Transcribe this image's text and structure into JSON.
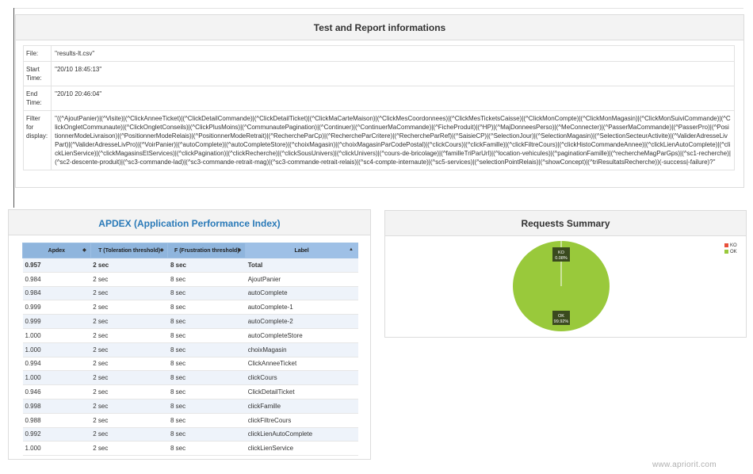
{
  "report_panel": {
    "title": "Test and Report informations",
    "rows": [
      {
        "key": "File:",
        "value": "\"results-lt.csv\""
      },
      {
        "key": "Start Time:",
        "value": "\"20/10 18:45:13\""
      },
      {
        "key": "End Time:",
        "value": "\"20/10 20:46:04\""
      },
      {
        "key": "Filter for display:",
        "value": "\"((^AjoutPanier)|(^Visite)|(^ClickAnneeTicket)|(^ClickDetailCommande)|(^ClickDetailTicket)|(^ClickMaCarteMaison)|(^ClickMesCoordonnees)|(^ClickMesTicketsCaisse)|(^ClickMonCompte)|(^ClickMonMagasin)|(^ClickMonSuiviCommande)|(^ClickOngletCommunaute)|(^ClickOngletConseils)|(^ClickPlusMoins)|(^CommunautePagination)|(^Continuer)|(^ContinuerMaCommande)|(^FicheProduit)|(^HP)|(^MajDonneesPerso)|(^MeConnecter)|(^PasserMaCommande)|(^PasserPro)|(^PositionnerModeLivraison)|(^PositionnerModeRelais)|(^PositionnerModeRetrait)|(^RechercheParCp)|(^RechercheParCritere)|(^RechercheParRef)|(^SaisieCP)|(^SelectionJour)|(^SelectionMagasin)|(^SelectionSecteurActivite)|(^ValiderAdresseLivPart)|(^ValiderAdresseLivPro)|(^VoirPanier)|(^autoComplete)|(^autoCompleteStore)|(^choixMagasin)|(^choixMagasinParCodePostal)|(^clickCours)|(^clickFamille)|(^clickFiltreCours)|(^clickHistoCommandeAnnee)|(^clickLienAutoComplete)|(^clickLienService)|(^clickMagasinsEtServices)|(^clickPagination)|(^clickRecherche)|(^clickSousUnivers)|(^clickUnivers)|(^cours-de-bricolage)|(^familleTriParUrl)|(^location-vehicules)|(^paginationFamille)|(^rechercheMagParGps)|(^sc1-recherche)|(^sc2-descente-produit)|(^sc3-commande-lad)|(^sc3-commande-retrait-mag)|(^sc3-commande-retrait-relais)|(^sc4-compte-internaute)|(^sc5-services)|(^selectionPointRelais)|(^showConcept)|(^triResultatsRecherche))(-success|-failure)?\""
      }
    ]
  },
  "apdex_panel": {
    "title": "APDEX (Application Performance Index)",
    "columns": [
      "Apdex",
      "T (Toleration threshold)",
      "F (Frustration threshold)",
      "Label"
    ],
    "sort_icons": [
      "◆",
      "◆",
      "◆",
      "▲"
    ],
    "rows": [
      [
        "0.957",
        "2 sec",
        "8 sec",
        "Total"
      ],
      [
        "0.984",
        "2 sec",
        "8 sec",
        "AjoutPanier"
      ],
      [
        "0.984",
        "2 sec",
        "8 sec",
        "autoComplete"
      ],
      [
        "0.999",
        "2 sec",
        "8 sec",
        "autoComplete-1"
      ],
      [
        "0.999",
        "2 sec",
        "8 sec",
        "autoComplete-2"
      ],
      [
        "1.000",
        "2 sec",
        "8 sec",
        "autoCompleteStore"
      ],
      [
        "1.000",
        "2 sec",
        "8 sec",
        "choixMagasin"
      ],
      [
        "0.994",
        "2 sec",
        "8 sec",
        "ClickAnneeTicket"
      ],
      [
        "1.000",
        "2 sec",
        "8 sec",
        "clickCours"
      ],
      [
        "0.946",
        "2 sec",
        "8 sec",
        "ClickDetailTicket"
      ],
      [
        "0.998",
        "2 sec",
        "8 sec",
        "clickFamille"
      ],
      [
        "0.988",
        "2 sec",
        "8 sec",
        "clickFiltreCours"
      ],
      [
        "0.992",
        "2 sec",
        "8 sec",
        "clickLienAutoComplete"
      ],
      [
        "1.000",
        "2 sec",
        "8 sec",
        "clickLienService"
      ]
    ]
  },
  "requests_panel": {
    "title": "Requests Summary",
    "legend": [
      {
        "label": "KO",
        "color": "#e8503a"
      },
      {
        "label": "OK",
        "color": "#99c93b"
      }
    ],
    "slices": [
      {
        "label": "KO",
        "percent_text": "0.08%",
        "value": 0.08,
        "color": "#e8503a"
      },
      {
        "label": "OK",
        "percent_text": "99.92%",
        "value": 99.92,
        "color": "#99c93b"
      }
    ]
  },
  "watermark": "www.apriorit.com"
}
